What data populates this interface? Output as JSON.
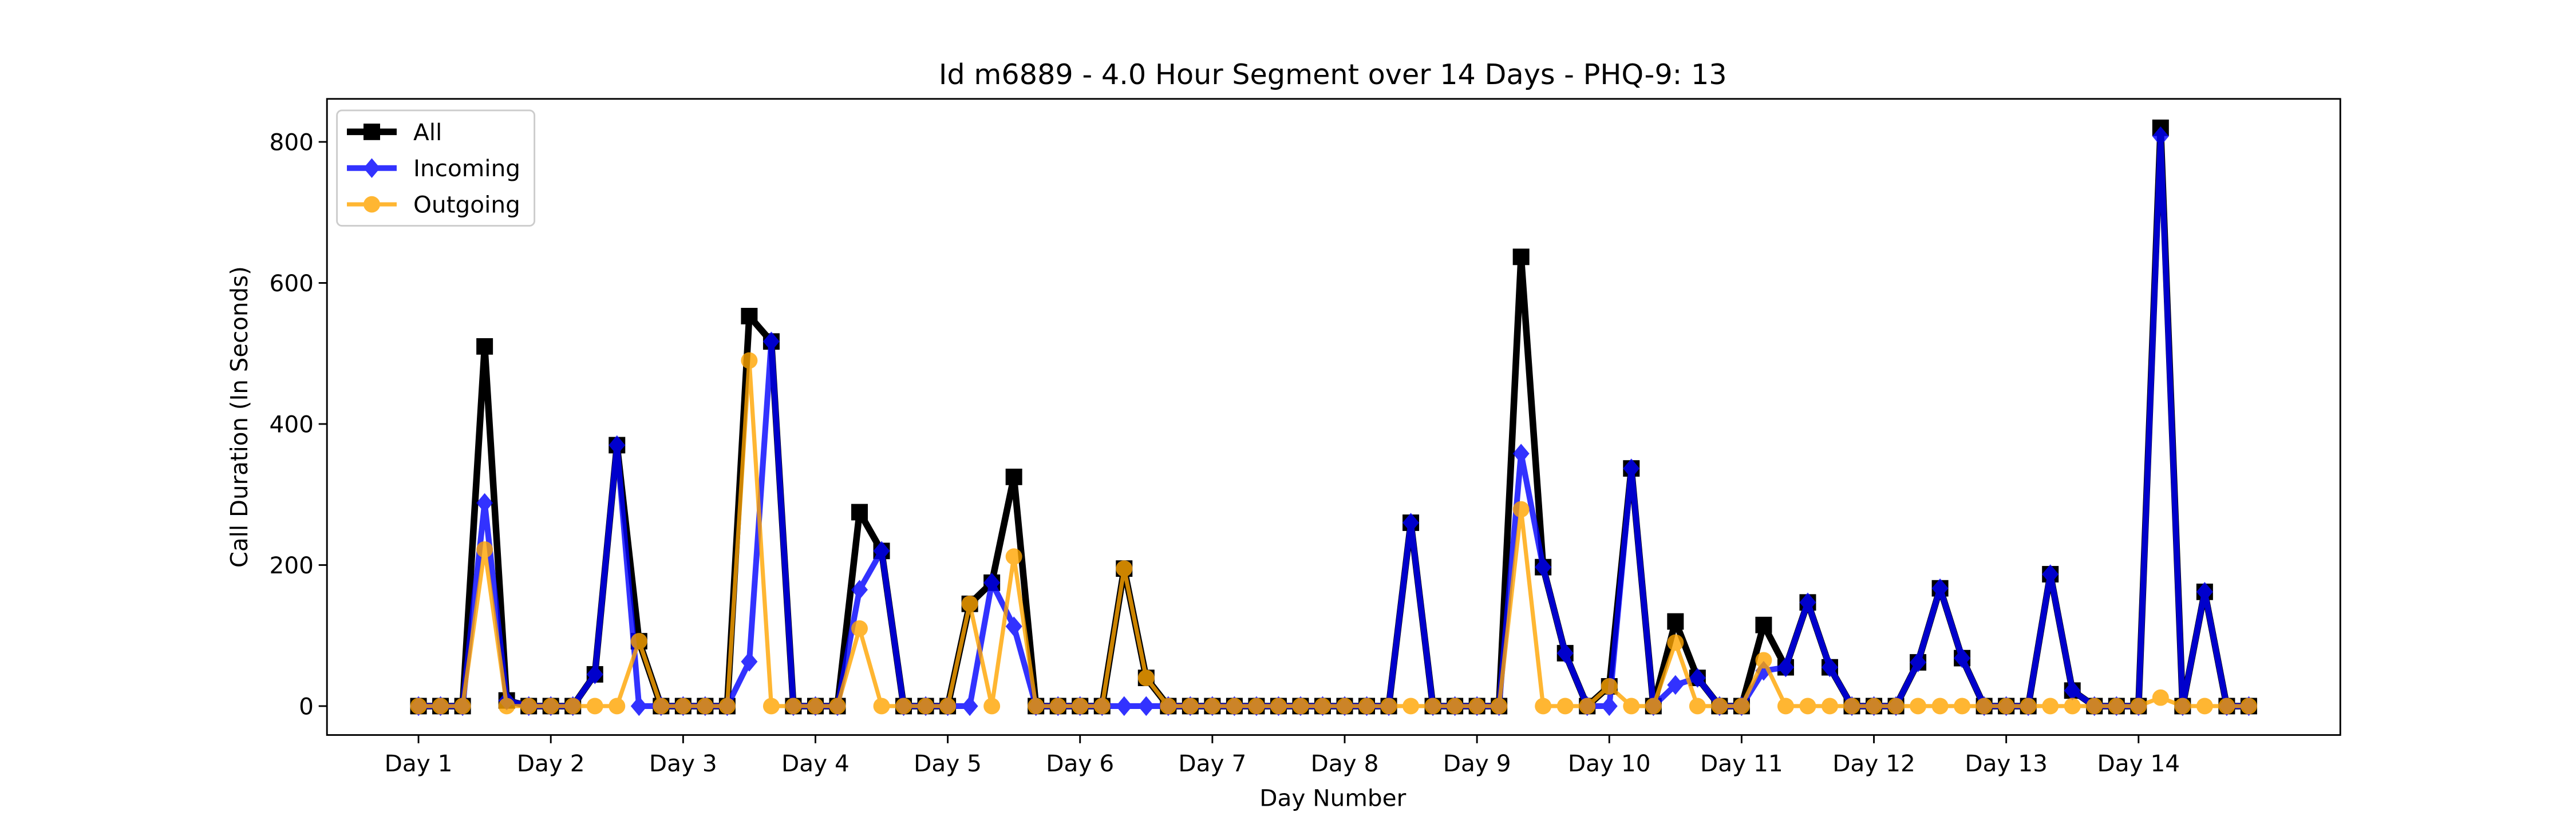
{
  "chart_data": {
    "type": "line",
    "title": "Id m6889 - 4.0 Hour Segment over 14 Days - PHQ-9: 13",
    "x_label": "Day Number",
    "y_label": "Call Duration (In Seconds)",
    "x": [
      0,
      1,
      2,
      3,
      4,
      5,
      6,
      7,
      8,
      9,
      10,
      11,
      12,
      13,
      14,
      15,
      16,
      17,
      18,
      19,
      20,
      21,
      22,
      23,
      24,
      25,
      26,
      27,
      28,
      29,
      30,
      31,
      32,
      33,
      34,
      35,
      36,
      37,
      38,
      39,
      40,
      41,
      42,
      43,
      44,
      45,
      46,
      47,
      48,
      49,
      50,
      51,
      52,
      53,
      54,
      55,
      56,
      57,
      58,
      59,
      60,
      61,
      62,
      63,
      64,
      65,
      66,
      67,
      68,
      69,
      70,
      71,
      72,
      73,
      74,
      75,
      76,
      77,
      78,
      79,
      80,
      81,
      82,
      83
    ],
    "xlim": [
      -4.15,
      87.15
    ],
    "xticks": [
      {
        "value": 0,
        "label": "Day 1"
      },
      {
        "value": 6,
        "label": "Day 2"
      },
      {
        "value": 12,
        "label": "Day 3"
      },
      {
        "value": 18,
        "label": "Day 4"
      },
      {
        "value": 24,
        "label": "Day 5"
      },
      {
        "value": 30,
        "label": "Day 6"
      },
      {
        "value": 36,
        "label": "Day 7"
      },
      {
        "value": 42,
        "label": "Day 8"
      },
      {
        "value": 48,
        "label": "Day 9"
      },
      {
        "value": 54,
        "label": "Day 10"
      },
      {
        "value": 60,
        "label": "Day 11"
      },
      {
        "value": 66,
        "label": "Day 12"
      },
      {
        "value": 72,
        "label": "Day 13"
      },
      {
        "value": 78,
        "label": "Day 14"
      }
    ],
    "ylim": [
      -41,
      861
    ],
    "yticks": [
      0,
      200,
      400,
      600,
      800
    ],
    "legend": "upper left",
    "series": [
      {
        "name": "All",
        "color": "#000000",
        "marker": "square",
        "values": [
          0,
          0,
          0,
          510,
          8,
          0,
          0,
          0,
          45,
          370,
          92,
          0,
          0,
          0,
          0,
          553,
          517,
          0,
          0,
          0,
          275,
          220,
          0,
          0,
          0,
          145,
          175,
          325,
          0,
          0,
          0,
          0,
          195,
          40,
          0,
          0,
          0,
          0,
          0,
          0,
          0,
          0,
          0,
          0,
          0,
          260,
          0,
          0,
          0,
          0,
          637,
          197,
          75,
          0,
          28,
          337,
          0,
          120,
          40,
          0,
          0,
          115,
          55,
          147,
          55,
          0,
          0,
          0,
          62,
          167,
          68,
          0,
          0,
          0,
          187,
          22,
          0,
          0,
          0,
          820,
          0,
          162,
          0,
          0
        ]
      },
      {
        "name": "Incoming",
        "color": "#0000ff",
        "marker": "diamond",
        "values": [
          0,
          0,
          0,
          288,
          8,
          0,
          0,
          0,
          45,
          370,
          0,
          0,
          0,
          0,
          0,
          63,
          517,
          0,
          0,
          0,
          165,
          220,
          0,
          0,
          0,
          0,
          175,
          113,
          0,
          0,
          0,
          0,
          0,
          0,
          0,
          0,
          0,
          0,
          0,
          0,
          0,
          0,
          0,
          0,
          0,
          260,
          0,
          0,
          0,
          0,
          358,
          197,
          75,
          0,
          0,
          337,
          0,
          30,
          40,
          0,
          0,
          50,
          55,
          147,
          55,
          0,
          0,
          0,
          62,
          167,
          68,
          0,
          0,
          0,
          187,
          22,
          0,
          0,
          0,
          808,
          0,
          162,
          0,
          0
        ]
      },
      {
        "name": "Outgoing",
        "color": "#ffa500",
        "marker": "circle",
        "values": [
          0,
          0,
          0,
          222,
          0,
          0,
          0,
          0,
          0,
          0,
          92,
          0,
          0,
          0,
          0,
          490,
          0,
          0,
          0,
          0,
          110,
          0,
          0,
          0,
          0,
          145,
          0,
          212,
          0,
          0,
          0,
          0,
          195,
          40,
          0,
          0,
          0,
          0,
          0,
          0,
          0,
          0,
          0,
          0,
          0,
          0,
          0,
          0,
          0,
          0,
          279,
          0,
          0,
          0,
          28,
          0,
          0,
          90,
          0,
          0,
          0,
          65,
          0,
          0,
          0,
          0,
          0,
          0,
          0,
          0,
          0,
          0,
          0,
          0,
          0,
          0,
          0,
          0,
          0,
          12,
          0,
          0,
          0,
          0
        ]
      }
    ]
  }
}
